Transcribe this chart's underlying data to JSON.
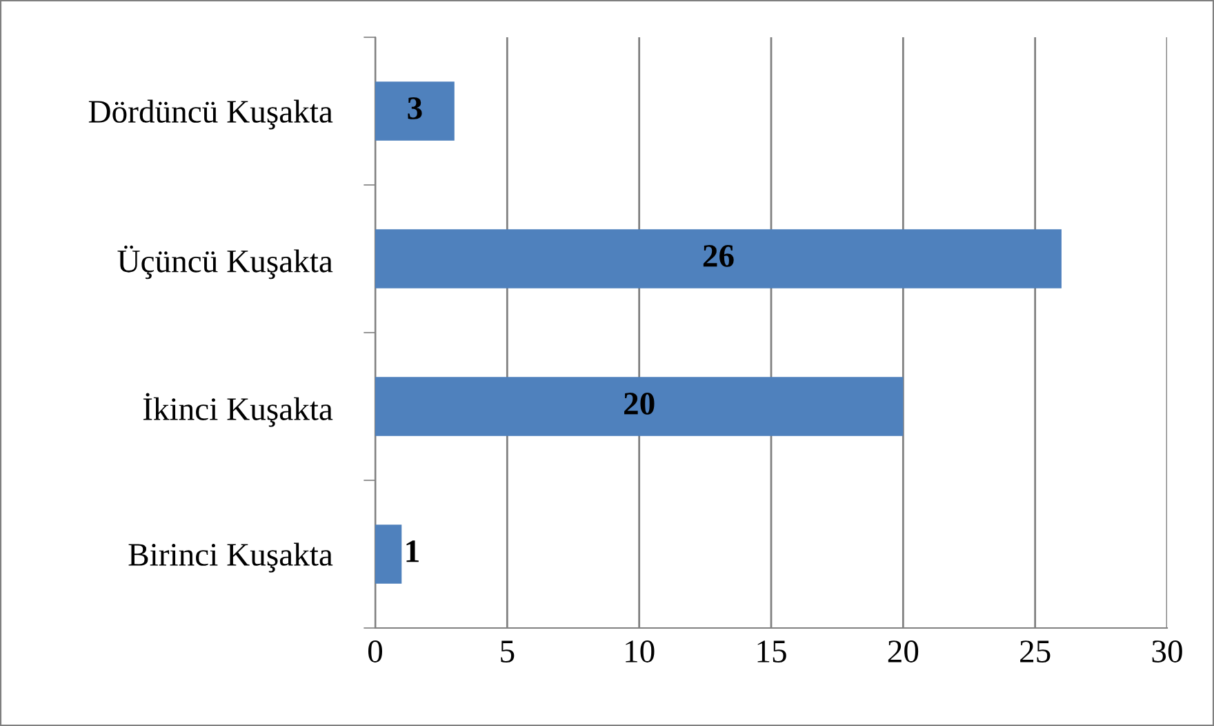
{
  "chart_data": {
    "type": "bar",
    "orientation": "horizontal",
    "categories": [
      "Dördüncü Kuşakta",
      "Üçüncü Kuşakta",
      "İkinci Kuşakta",
      "Birinci Kuşakta"
    ],
    "values": [
      3,
      26,
      20,
      1
    ],
    "color": "#4f81bd",
    "xlim": [
      0,
      30
    ],
    "xticks": [
      0,
      5,
      10,
      15,
      20,
      25,
      30
    ],
    "grid": "x",
    "data_labels": true
  }
}
